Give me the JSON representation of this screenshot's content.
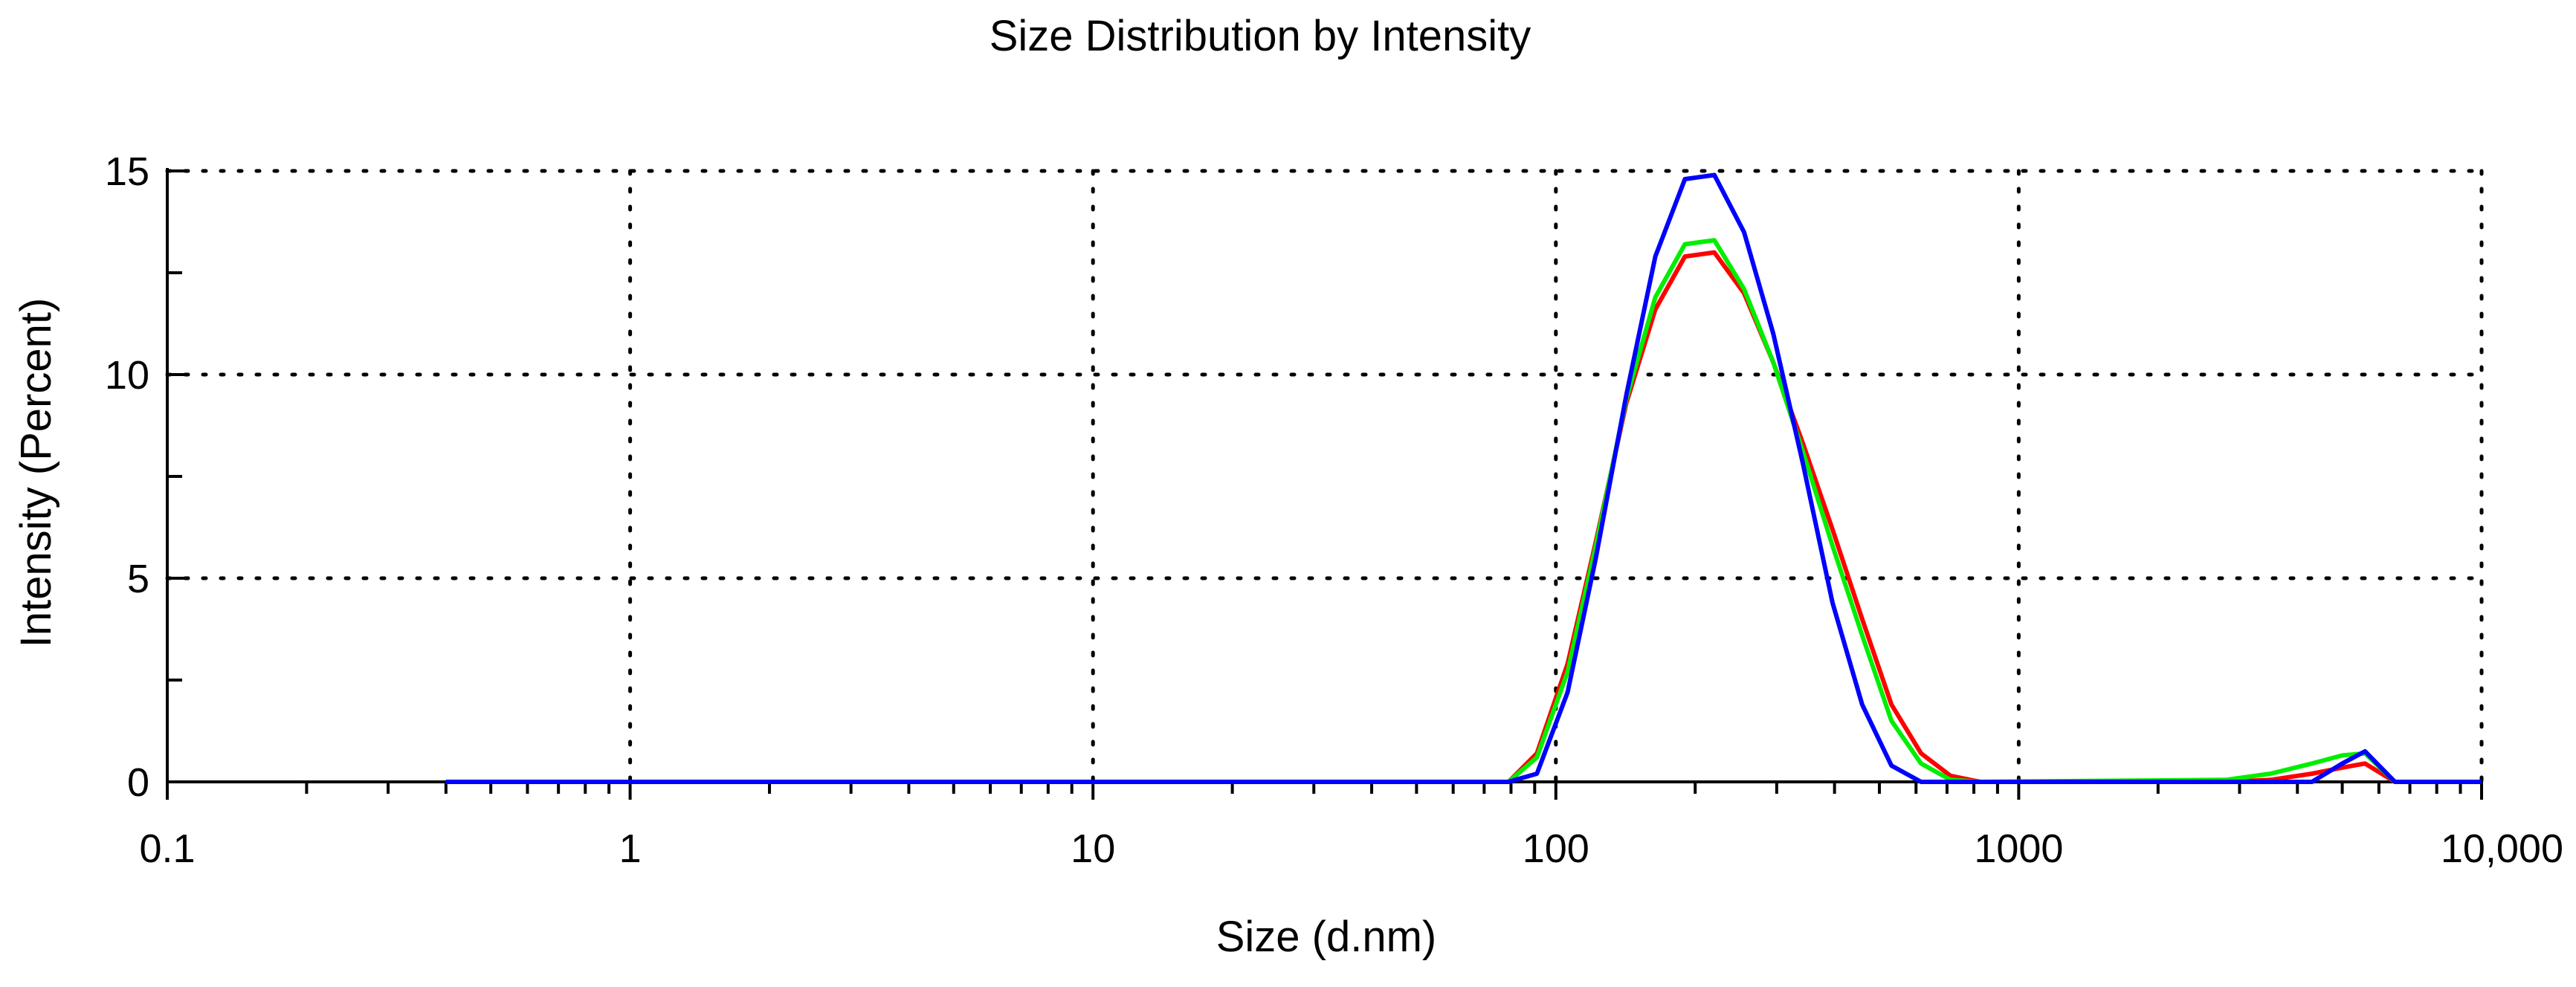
{
  "chart_data": {
    "type": "line",
    "title": "Size Distribution by Intensity",
    "xlabel": "Size (d.nm)",
    "ylabel": "Intensity (Percent)",
    "x_scale": "log",
    "xlim": [
      0.1,
      10000
    ],
    "ylim": [
      0,
      15
    ],
    "grid": true,
    "legend": "none",
    "x_ticks": [
      {
        "value": 0.1,
        "label": "0.1"
      },
      {
        "value": 1,
        "label": "1"
      },
      {
        "value": 10,
        "label": "10"
      },
      {
        "value": 100,
        "label": "100"
      },
      {
        "value": 1000,
        "label": "1000"
      },
      {
        "value": 10000,
        "label": "10,000"
      }
    ],
    "y_ticks": [
      {
        "value": 0,
        "label": "0"
      },
      {
        "value": 5,
        "label": "5"
      },
      {
        "value": 10,
        "label": "10"
      },
      {
        "value": 15,
        "label": "15"
      }
    ],
    "series": [
      {
        "color": "#ff0000",
        "points": [
          [
            0.4,
            0
          ],
          [
            79,
            0
          ],
          [
            91,
            0.7
          ],
          [
            106,
            2.9
          ],
          [
            122,
            5.9
          ],
          [
            142,
            9.3
          ],
          [
            164,
            11.6
          ],
          [
            190,
            12.9
          ],
          [
            220,
            13.0
          ],
          [
            255,
            12.0
          ],
          [
            295,
            10.3
          ],
          [
            342,
            8.3
          ],
          [
            396,
            6.2
          ],
          [
            459,
            4.0
          ],
          [
            531,
            1.9
          ],
          [
            615,
            0.7
          ],
          [
            712,
            0.15
          ],
          [
            825,
            0
          ],
          [
            2800,
            0
          ],
          [
            3500,
            0.05
          ],
          [
            4300,
            0.2
          ],
          [
            5000,
            0.35
          ],
          [
            5600,
            0.45
          ],
          [
            6500,
            0
          ],
          [
            10000,
            0
          ]
        ]
      },
      {
        "color": "#00ee00",
        "points": [
          [
            0.4,
            0
          ],
          [
            79,
            0
          ],
          [
            91,
            0.6
          ],
          [
            106,
            2.7
          ],
          [
            122,
            5.8
          ],
          [
            142,
            9.4
          ],
          [
            164,
            11.9
          ],
          [
            190,
            13.2
          ],
          [
            220,
            13.3
          ],
          [
            255,
            12.1
          ],
          [
            295,
            10.3
          ],
          [
            342,
            8.1
          ],
          [
            396,
            5.8
          ],
          [
            459,
            3.6
          ],
          [
            531,
            1.5
          ],
          [
            615,
            0.45
          ],
          [
            712,
            0.05
          ],
          [
            825,
            0
          ],
          [
            2800,
            0.05
          ],
          [
            3500,
            0.2
          ],
          [
            4300,
            0.45
          ],
          [
            5000,
            0.65
          ],
          [
            5600,
            0.7
          ],
          [
            6500,
            0
          ],
          [
            10000,
            0
          ]
        ]
      },
      {
        "color": "#0000ff",
        "points": [
          [
            0.4,
            0
          ],
          [
            79,
            0
          ],
          [
            91,
            0.2
          ],
          [
            106,
            2.2
          ],
          [
            122,
            5.5
          ],
          [
            142,
            9.5
          ],
          [
            164,
            12.9
          ],
          [
            190,
            14.8
          ],
          [
            220,
            14.9
          ],
          [
            255,
            13.5
          ],
          [
            295,
            11.0
          ],
          [
            342,
            7.8
          ],
          [
            396,
            4.4
          ],
          [
            459,
            1.9
          ],
          [
            531,
            0.4
          ],
          [
            615,
            0
          ],
          [
            2800,
            0
          ],
          [
            3500,
            0
          ],
          [
            4300,
            0
          ],
          [
            5000,
            0.45
          ],
          [
            5600,
            0.75
          ],
          [
            6500,
            0
          ],
          [
            10000,
            0
          ]
        ]
      }
    ]
  }
}
